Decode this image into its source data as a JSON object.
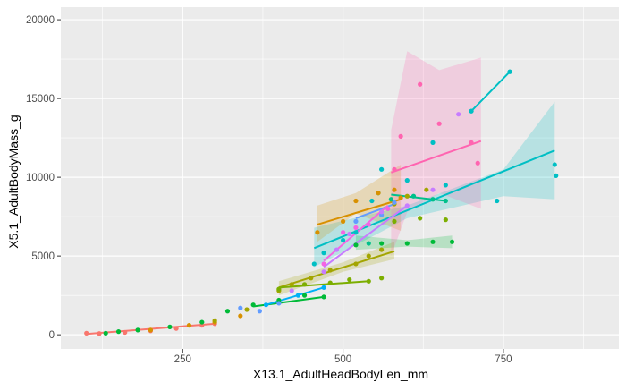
{
  "chart_data": {
    "type": "scatter",
    "title": "",
    "xlabel": "X13.1_AdultHeadBodyLen_mm",
    "ylabel": "X5.1_AdultBodyMass_g",
    "xlim": [
      60,
      930
    ],
    "ylim": [
      -900,
      20800
    ],
    "xticks": [
      250,
      500,
      750
    ],
    "yticks": [
      0,
      5000,
      10000,
      15000,
      20000
    ],
    "grid": true,
    "legend": "none",
    "panel_background": "#ebebeb",
    "grid_color": "#ffffff",
    "series": [
      {
        "color": "#00BFC4",
        "points": [
          [
            455,
            4500
          ],
          [
            470,
            5200
          ],
          [
            500,
            6000
          ],
          [
            520,
            6500
          ],
          [
            545,
            8500
          ],
          [
            555,
            9000
          ],
          [
            560,
            10500
          ],
          [
            600,
            9800
          ],
          [
            640,
            12200
          ],
          [
            660,
            9500
          ],
          [
            700,
            14200
          ],
          [
            740,
            8500
          ],
          [
            760,
            16700
          ],
          [
            830,
            10800
          ],
          [
            832,
            10100
          ]
        ],
        "fit": [
          [
            455,
            5500
          ],
          [
            830,
            11700
          ]
        ],
        "band_upper": [
          [
            455,
            6800
          ],
          [
            600,
            8200
          ],
          [
            750,
            10500
          ],
          [
            830,
            14800
          ]
        ],
        "band_lower": [
          [
            455,
            4300
          ],
          [
            600,
            7400
          ],
          [
            750,
            8800
          ],
          [
            830,
            8600
          ]
        ]
      },
      {
        "color": "#00BFC4",
        "points": [
          [
            700,
            14200
          ],
          [
            760,
            16700
          ]
        ],
        "fit": [
          [
            700,
            14200
          ],
          [
            760,
            16700
          ]
        ]
      },
      {
        "color": "#F8766D",
        "points": [
          [
            100,
            100
          ],
          [
            120,
            80
          ],
          [
            160,
            150
          ],
          [
            200,
            250
          ],
          [
            240,
            400
          ],
          [
            280,
            600
          ],
          [
            300,
            700
          ]
        ],
        "fit": [
          [
            100,
            50
          ],
          [
            300,
            700
          ]
        ]
      },
      {
        "color": "#D89000",
        "points": [
          [
            200,
            300
          ],
          [
            260,
            600
          ],
          [
            300,
            800
          ],
          [
            340,
            1200
          ],
          [
            460,
            6500
          ],
          [
            500,
            7200
          ],
          [
            520,
            8500
          ],
          [
            555,
            9000
          ],
          [
            580,
            9200
          ],
          [
            590,
            8700
          ]
        ],
        "fit": [
          [
            460,
            7000
          ],
          [
            590,
            8600
          ]
        ],
        "band_upper": [
          [
            460,
            8200
          ],
          [
            520,
            9000
          ],
          [
            590,
            10800
          ]
        ],
        "band_lower": [
          [
            460,
            5900
          ],
          [
            520,
            7700
          ],
          [
            590,
            6600
          ]
        ]
      },
      {
        "color": "#A3A500",
        "points": [
          [
            300,
            900
          ],
          [
            350,
            1600
          ],
          [
            400,
            2800
          ],
          [
            420,
            3200
          ],
          [
            450,
            3600
          ],
          [
            480,
            4100
          ],
          [
            520,
            4500
          ],
          [
            540,
            5000
          ],
          [
            560,
            5400
          ],
          [
            580,
            8300
          ],
          [
            600,
            8800
          ],
          [
            630,
            9200
          ]
        ],
        "fit": [
          [
            400,
            3000
          ],
          [
            580,
            5300
          ]
        ],
        "band_upper": [
          [
            400,
            3400
          ],
          [
            500,
            4600
          ],
          [
            580,
            5900
          ]
        ],
        "band_lower": [
          [
            400,
            2500
          ],
          [
            500,
            4000
          ],
          [
            580,
            4800
          ]
        ]
      },
      {
        "color": "#7CAE00",
        "points": [
          [
            400,
            2900
          ],
          [
            440,
            3200
          ],
          [
            480,
            3300
          ],
          [
            510,
            3500
          ],
          [
            540,
            3400
          ],
          [
            560,
            3600
          ],
          [
            580,
            7200
          ],
          [
            620,
            7400
          ],
          [
            660,
            7300
          ]
        ],
        "fit": [
          [
            400,
            3000
          ],
          [
            540,
            3400
          ]
        ]
      },
      {
        "color": "#00BA38",
        "points": [
          [
            130,
            100
          ],
          [
            150,
            200
          ],
          [
            180,
            300
          ],
          [
            230,
            500
          ],
          [
            280,
            800
          ],
          [
            320,
            1500
          ],
          [
            360,
            1900
          ],
          [
            400,
            2200
          ],
          [
            440,
            2500
          ],
          [
            470,
            2400
          ],
          [
            520,
            5700
          ],
          [
            560,
            5800
          ],
          [
            600,
            5800
          ],
          [
            640,
            5900
          ],
          [
            670,
            5900
          ]
        ],
        "fit": [
          [
            360,
            1800
          ],
          [
            470,
            2400
          ]
        ],
        "band_upper": [
          [
            520,
            6300
          ],
          [
            600,
            6000
          ],
          [
            670,
            6300
          ]
        ],
        "band_lower": [
          [
            520,
            5400
          ],
          [
            600,
            5600
          ],
          [
            670,
            5500
          ]
        ]
      },
      {
        "color": "#00C08B",
        "points": [
          [
            540,
            5800
          ],
          [
            575,
            8600
          ],
          [
            610,
            8800
          ],
          [
            640,
            8600
          ],
          [
            660,
            8500
          ]
        ],
        "fit": [
          [
            575,
            8900
          ],
          [
            660,
            8500
          ]
        ]
      },
      {
        "color": "#00B0F6",
        "points": [
          [
            380,
            1900
          ],
          [
            430,
            2500
          ],
          [
            470,
            3000
          ]
        ],
        "fit": [
          [
            380,
            1900
          ],
          [
            470,
            3000
          ]
        ]
      },
      {
        "color": "#619CFF",
        "points": [
          [
            340,
            1700
          ],
          [
            370,
            1500
          ],
          [
            400,
            2000
          ],
          [
            520,
            7200
          ],
          [
            560,
            7600
          ],
          [
            570,
            8000
          ],
          [
            580,
            8400
          ]
        ],
        "fit": [
          [
            520,
            7400
          ],
          [
            580,
            8300
          ]
        ]
      },
      {
        "color": "#C77CFF",
        "points": [
          [
            420,
            2800
          ],
          [
            470,
            4000
          ],
          [
            490,
            5400
          ],
          [
            510,
            6400
          ],
          [
            560,
            7800
          ],
          [
            600,
            8200
          ],
          [
            640,
            9200
          ],
          [
            680,
            14000
          ]
        ],
        "fit": [
          [
            470,
            4300
          ],
          [
            600,
            8200
          ]
        ]
      },
      {
        "color": "#F564E3",
        "points": [
          [
            470,
            4500
          ],
          [
            500,
            6500
          ],
          [
            520,
            6800
          ],
          [
            540,
            7000
          ],
          [
            570,
            8000
          ]
        ],
        "fit": [
          [
            470,
            4700
          ],
          [
            570,
            8200
          ]
        ]
      },
      {
        "color": "#FF64B0",
        "points": [
          [
            580,
            10500
          ],
          [
            590,
            12600
          ],
          [
            620,
            15900
          ],
          [
            650,
            13400
          ],
          [
            700,
            12200
          ],
          [
            710,
            10900
          ]
        ],
        "fit": [
          [
            575,
            10300
          ],
          [
            715,
            12300
          ]
        ],
        "band_upper": [
          [
            575,
            13000
          ],
          [
            600,
            18000
          ],
          [
            650,
            16800
          ],
          [
            715,
            17600
          ]
        ],
        "band_lower": [
          [
            575,
            5000
          ],
          [
            600,
            7800
          ],
          [
            650,
            9000
          ],
          [
            715,
            8000
          ]
        ]
      }
    ]
  }
}
